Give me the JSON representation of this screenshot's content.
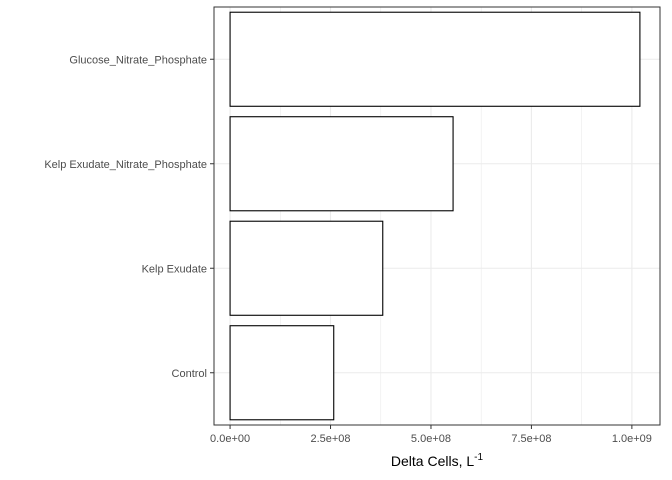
{
  "chart_data": {
    "type": "bar",
    "orientation": "horizontal",
    "categories": [
      "Glucose_Nitrate_Phosphate",
      "Kelp Exudate_Nitrate_Phosphate",
      "Kelp Exudate",
      "Control"
    ],
    "values": [
      1020000000,
      555000000,
      380000000,
      258000000
    ],
    "xlim": [
      -40000000,
      1070000000
    ],
    "xticks": [
      0,
      250000000,
      500000000,
      750000000,
      1000000000
    ],
    "xtick_labels": [
      "0.0e+00",
      "2.5e+08",
      "5.0e+08",
      "7.5e+08",
      "1.0e+09"
    ],
    "xlabel": "Delta Cells, L",
    "xlabel_superscript": "-1",
    "ylabel": "",
    "title": "",
    "grid": true,
    "bar_fill": "#ffffff",
    "bar_stroke": "#000000",
    "grid_color": "#ebebeb",
    "panel_border_color": "#333333"
  }
}
